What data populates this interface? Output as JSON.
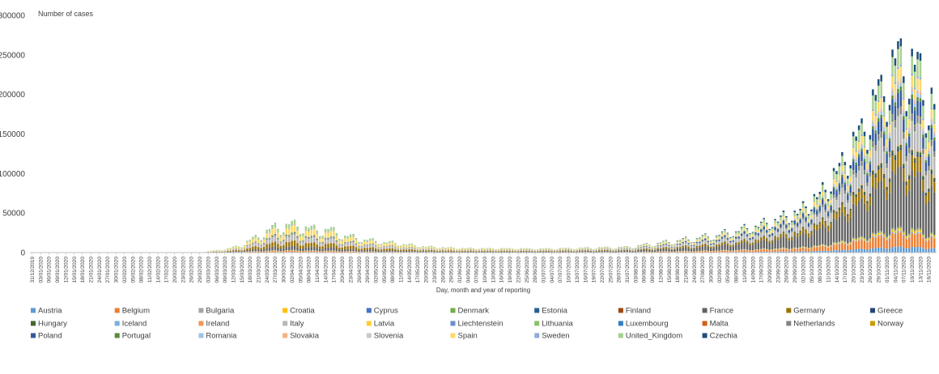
{
  "chart_data": {
    "type": "bar",
    "stacked": true,
    "ylabel": "Number of cases",
    "xlabel": "Day, month and year of reporting",
    "ylim": [
      0,
      300000
    ],
    "yticks": [
      "0",
      "50000",
      "100000",
      "150000",
      "200000",
      "250000",
      "300000"
    ],
    "days": 324,
    "tick_every_days": 3,
    "x_tick_labels": [
      "31/12/2019",
      "03/01/2020",
      "06/01/2020",
      "09/01/2020",
      "12/01/2020",
      "15/01/2020",
      "18/01/2020",
      "21/01/2020",
      "24/01/2020",
      "27/01/2020",
      "30/01/2020",
      "02/02/2020",
      "05/02/2020",
      "08/02/2020",
      "11/02/2020",
      "14/02/2020",
      "17/02/2020",
      "20/02/2020",
      "23/02/2020",
      "26/02/2020",
      "29/02/2020",
      "03/03/2020",
      "06/03/2020",
      "09/03/2020",
      "12/03/2020",
      "15/03/2020",
      "18/03/2020",
      "21/03/2020",
      "24/03/2020",
      "27/03/2020",
      "30/03/2020",
      "02/04/2020",
      "05/04/2020",
      "08/04/2020",
      "11/04/2020",
      "14/04/2020",
      "17/04/2020",
      "20/04/2020",
      "23/04/2020",
      "26/04/2020",
      "29/04/2020",
      "02/05/2020",
      "05/05/2020",
      "08/05/2020",
      "11/05/2020",
      "14/05/2020",
      "17/05/2020",
      "20/05/2020",
      "23/05/2020",
      "26/05/2020",
      "29/05/2020",
      "01/06/2020",
      "04/06/2020",
      "07/06/2020",
      "10/06/2020",
      "13/06/2020",
      "16/06/2020",
      "19/06/2020",
      "22/06/2020",
      "25/06/2020",
      "28/06/2020",
      "01/07/2020",
      "04/07/2020",
      "07/07/2020",
      "10/07/2020",
      "13/07/2020",
      "16/07/2020",
      "19/07/2020",
      "22/07/2020",
      "25/07/2020",
      "28/07/2020",
      "31/07/2020",
      "03/08/2020",
      "06/08/2020",
      "09/08/2020",
      "12/08/2020",
      "15/08/2020",
      "18/08/2020",
      "21/08/2020",
      "24/08/2020",
      "27/08/2020",
      "30/08/2020",
      "02/09/2020",
      "05/09/2020",
      "08/09/2020",
      "11/09/2020",
      "14/09/2020",
      "17/09/2020",
      "20/09/2020",
      "23/09/2020",
      "26/09/2020",
      "29/09/2020",
      "02/10/2020",
      "05/10/2020",
      "08/10/2020",
      "11/10/2020",
      "14/10/2020",
      "17/10/2020",
      "20/10/2020",
      "23/10/2020",
      "26/10/2020",
      "29/10/2020",
      "01/11/2020",
      "04/11/2020",
      "07/11/2020",
      "10/11/2020",
      "13/11/2020",
      "16/11/2020"
    ],
    "daily_total_keypoints": [
      [
        0,
        0
      ],
      [
        55,
        100
      ],
      [
        61,
        800
      ],
      [
        70,
        5000
      ],
      [
        75,
        10000
      ],
      [
        80,
        20000
      ],
      [
        87,
        33000
      ],
      [
        91,
        35000
      ],
      [
        95,
        36000
      ],
      [
        100,
        30000
      ],
      [
        106,
        30000
      ],
      [
        112,
        22000
      ],
      [
        121,
        16000
      ],
      [
        131,
        12000
      ],
      [
        141,
        8000
      ],
      [
        152,
        6000
      ],
      [
        182,
        5000
      ],
      [
        213,
        7000
      ],
      [
        228,
        14000
      ],
      [
        244,
        22000
      ],
      [
        254,
        30000
      ],
      [
        264,
        40000
      ],
      [
        275,
        55000
      ],
      [
        284,
        85000
      ],
      [
        291,
        125000
      ],
      [
        298,
        170000
      ],
      [
        305,
        225000
      ],
      [
        312,
        260000
      ],
      [
        316,
        235000
      ],
      [
        319,
        230000
      ],
      [
        323,
        185000
      ]
    ],
    "weekly_pattern": [
      1.0,
      0.95,
      1.05,
      1.1,
      0.9,
      0.7,
      0.75
    ],
    "legend_position": "bottom",
    "series": [
      {
        "name": "Austria",
        "color": "#5B9BD5",
        "share_spring": 2,
        "share_autumn": 3
      },
      {
        "name": "Belgium",
        "color": "#ED7D31",
        "share_spring": 4,
        "share_autumn": 7
      },
      {
        "name": "Bulgaria",
        "color": "#A5A5A5",
        "share_spring": 0.2,
        "share_autumn": 1
      },
      {
        "name": "Croatia",
        "color": "#FFC000",
        "share_spring": 0.2,
        "share_autumn": 1
      },
      {
        "name": "Cyprus",
        "color": "#4472C4",
        "share_spring": 0.1,
        "share_autumn": 0.2
      },
      {
        "name": "Denmark",
        "color": "#70AD47",
        "share_spring": 1,
        "share_autumn": 0.5
      },
      {
        "name": "Estonia",
        "color": "#255E91",
        "share_spring": 0.2,
        "share_autumn": 0.1
      },
      {
        "name": "Finland",
        "color": "#9E480E",
        "share_spring": 0.5,
        "share_autumn": 0.2
      },
      {
        "name": "France",
        "color": "#636363",
        "share_spring": 12,
        "share_autumn": 30
      },
      {
        "name": "Germany",
        "color": "#997300",
        "share_spring": 15,
        "share_autumn": 8
      },
      {
        "name": "Greece",
        "color": "#264478",
        "share_spring": 0.3,
        "share_autumn": 1
      },
      {
        "name": "Hungary",
        "color": "#43682B",
        "share_spring": 0.3,
        "share_autumn": 1.5
      },
      {
        "name": "Iceland",
        "color": "#7CAFDD",
        "share_spring": 0.2,
        "share_autumn": 0.05
      },
      {
        "name": "Ireland",
        "color": "#F1975A",
        "share_spring": 2,
        "share_autumn": 0.5
      },
      {
        "name": "Italy",
        "color": "#B7B7B7",
        "share_spring": 15,
        "share_autumn": 14
      },
      {
        "name": "Latvia",
        "color": "#FFCD33",
        "share_spring": 0.1,
        "share_autumn": 0.2
      },
      {
        "name": "Liechtenstein",
        "color": "#698ED0",
        "share_spring": 0.02,
        "share_autumn": 0.02
      },
      {
        "name": "Lithuania",
        "color": "#8CC168",
        "share_spring": 0.2,
        "share_autumn": 0.5
      },
      {
        "name": "Luxembourg",
        "color": "#327DC2",
        "share_spring": 0.3,
        "share_autumn": 0.3
      },
      {
        "name": "Malta",
        "color": "#D26012",
        "share_spring": 0.05,
        "share_autumn": 0.1
      },
      {
        "name": "Netherlands",
        "color": "#848484",
        "share_spring": 3,
        "share_autumn": 3
      },
      {
        "name": "Norway",
        "color": "#CC9A00",
        "share_spring": 1,
        "share_autumn": 0.3
      },
      {
        "name": "Poland",
        "color": "#335AA1",
        "share_spring": 1,
        "share_autumn": 8
      },
      {
        "name": "Portugal",
        "color": "#5A8A39",
        "share_spring": 2,
        "share_autumn": 2
      },
      {
        "name": "Romania",
        "color": "#9DC3E6",
        "share_spring": 1,
        "share_autumn": 2
      },
      {
        "name": "Slovakia",
        "color": "#F4B183",
        "share_spring": 0.1,
        "share_autumn": 1
      },
      {
        "name": "Slovenia",
        "color": "#C9C9C9",
        "share_spring": 0.2,
        "share_autumn": 1
      },
      {
        "name": "Spain",
        "color": "#FFD966",
        "share_spring": 20,
        "share_autumn": 6
      },
      {
        "name": "Sweden",
        "color": "#8FAADC",
        "share_spring": 2,
        "share_autumn": 1
      },
      {
        "name": "United_Kingdom",
        "color": "#A9D18E",
        "share_spring": 12,
        "share_autumn": 9
      },
      {
        "name": "Czechia",
        "color": "#1F4E79",
        "share_spring": 0.5,
        "share_autumn": 4
      }
    ]
  }
}
